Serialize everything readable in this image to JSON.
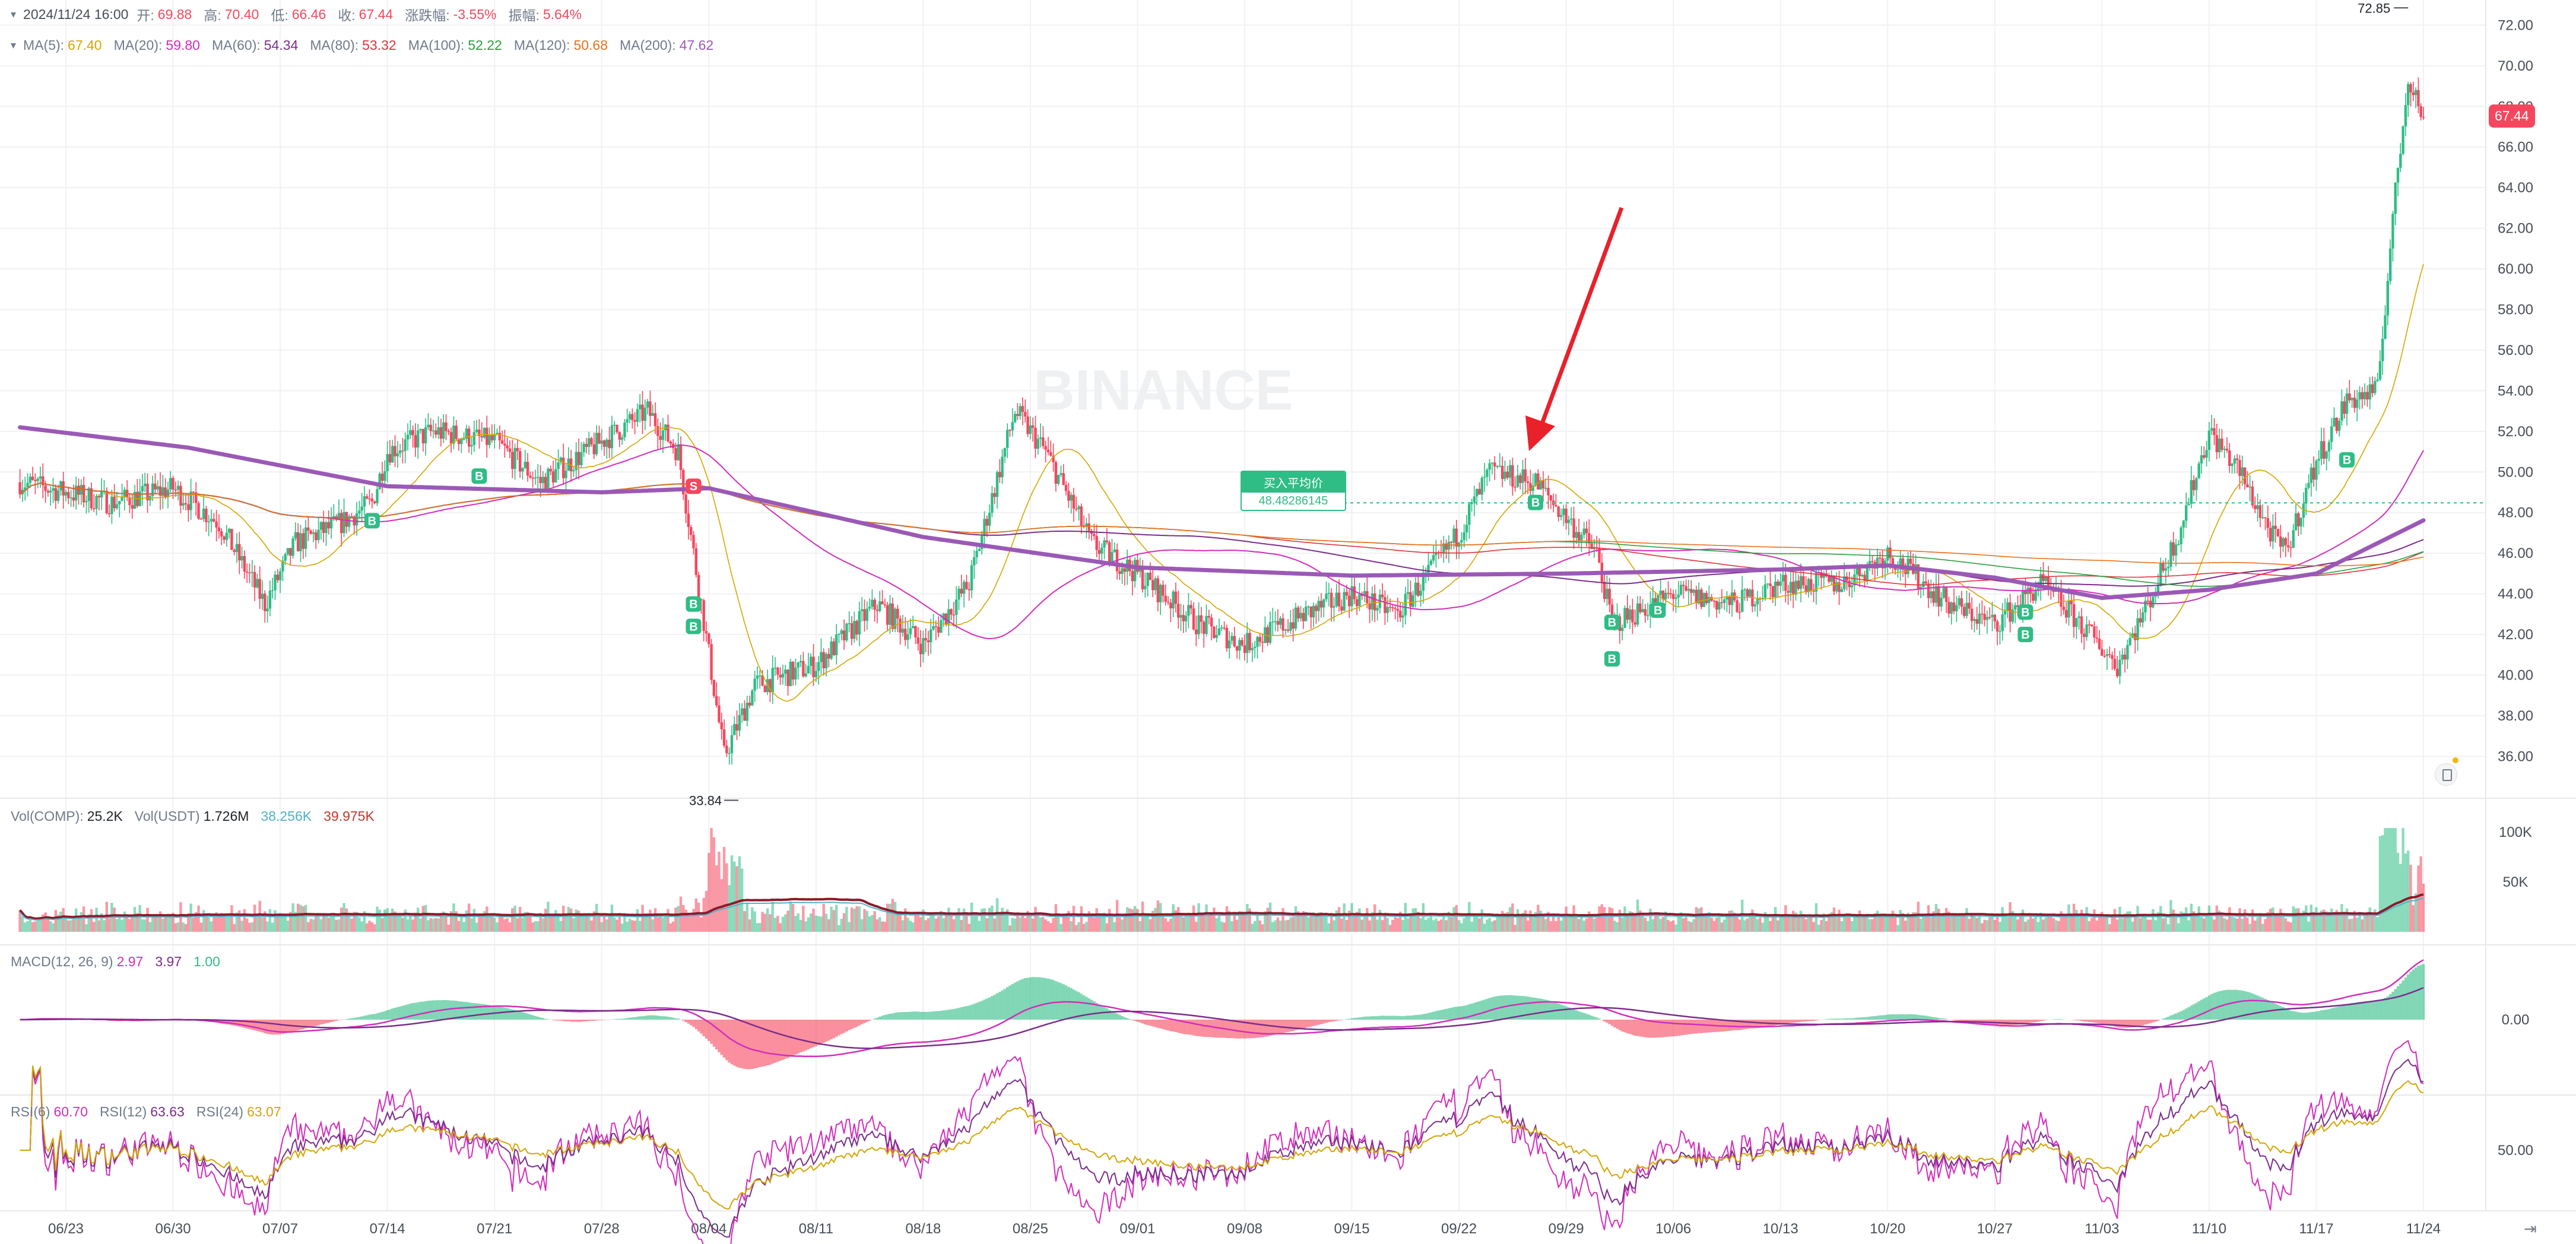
{
  "header": {
    "date": "2024/11/24 16:00",
    "fields": [
      {
        "k": "开:",
        "v": "69.88",
        "c": "#f6465d"
      },
      {
        "k": "高:",
        "v": "70.40",
        "c": "#f6465d"
      },
      {
        "k": "低:",
        "v": "66.46",
        "c": "#f6465d"
      },
      {
        "k": "收:",
        "v": "67.44",
        "c": "#f6465d"
      },
      {
        "k": "涨跌幅:",
        "v": "-3.55%",
        "c": "#f6465d"
      },
      {
        "k": "振幅:",
        "v": "5.64%",
        "c": "#f6465d"
      }
    ]
  },
  "ma_legend": [
    {
      "k": "MA(5):",
      "v": "67.40",
      "c": "#d6a500"
    },
    {
      "k": "MA(20):",
      "v": "59.80",
      "c": "#d32dbb"
    },
    {
      "k": "MA(60):",
      "v": "54.34",
      "c": "#7b2d8b"
    },
    {
      "k": "MA(80):",
      "v": "53.32",
      "c": "#e1323c"
    },
    {
      "k": "MA(100):",
      "v": "52.22",
      "c": "#2e9e3e"
    },
    {
      "k": "MA(120):",
      "v": "50.68",
      "c": "#e8711c"
    },
    {
      "k": "MA(200):",
      "v": "47.62",
      "c": "#9b59b6"
    }
  ],
  "vol_legend": [
    {
      "k": "Vol(COMP):",
      "v": "25.2K",
      "c": "#1e2329"
    },
    {
      "k": "Vol(USDT)",
      "v": "1.726M",
      "c": "#1e2329"
    },
    {
      "k": "",
      "v": "38.256K",
      "c": "#4fb1c9"
    },
    {
      "k": "",
      "v": "39.975K",
      "c": "#c0392b"
    }
  ],
  "macd_legend": [
    {
      "k": "MACD(12, 26, 9)",
      "v": "2.97",
      "c": "#d32dbb"
    },
    {
      "k": "",
      "v": "3.97",
      "c": "#7b2d8b"
    },
    {
      "k": "",
      "v": "1.00",
      "c": "#2ebd85"
    }
  ],
  "rsi_legend": [
    {
      "k": "RSI(6)",
      "v": "60.70",
      "c": "#d32dbb"
    },
    {
      "k": "RSI(12)",
      "v": "63.63",
      "c": "#7b2d8b"
    },
    {
      "k": "RSI(24)",
      "v": "63.07",
      "c": "#d6a500"
    }
  ],
  "current_price": "67.44",
  "buy_avg": {
    "label": "买入平均价",
    "value": "48.48286145",
    "price": 48.48
  },
  "watermark": "BINANCE",
  "colors": {
    "up": "#2ebd85",
    "down": "#f6465d",
    "grid": "#f0f1f3",
    "axis_text": "#474d57",
    "arrow": "#e8212b",
    "ma200": "#9b59b6"
  },
  "chart_data": {
    "type": "candlestick",
    "x_tick_labels": [
      "06/23",
      "06/30",
      "07/07",
      "07/14",
      "07/21",
      "07/28",
      "08/04",
      "08/11",
      "08/18",
      "08/25",
      "09/01",
      "09/08",
      "09/15",
      "09/22",
      "09/29",
      "10/06",
      "10/13",
      "10/20",
      "10/27",
      "11/03",
      "11/10",
      "11/17",
      "11/24"
    ],
    "x_range": [
      "2024-06-20",
      "2024-11-24"
    ],
    "y_ticks": [
      "72.00",
      "70.00",
      "68.00",
      "66.00",
      "64.00",
      "62.00",
      "60.00",
      "58.00",
      "56.00",
      "54.00",
      "52.00",
      "50.00",
      "48.00",
      "46.00",
      "44.00",
      "42.00",
      "40.00",
      "38.00",
      "36.00"
    ],
    "ylim": [
      34.2,
      72.8
    ],
    "high_label": "72.85",
    "low_label": "33.84",
    "anchors": [
      {
        "d": "06/20",
        "p": 49.5
      },
      {
        "d": "06/23",
        "p": 49.0
      },
      {
        "d": "06/26",
        "p": 48.5
      },
      {
        "d": "06/30",
        "p": 49.2
      },
      {
        "d": "07/03",
        "p": 47.5
      },
      {
        "d": "07/06",
        "p": 43.5
      },
      {
        "d": "07/08",
        "p": 46.5
      },
      {
        "d": "07/11",
        "p": 47.5
      },
      {
        "d": "07/13",
        "p": 48.5
      },
      {
        "d": "07/14",
        "p": 51.0
      },
      {
        "d": "07/17",
        "p": 52.0
      },
      {
        "d": "07/21",
        "p": 51.5
      },
      {
        "d": "07/24",
        "p": 49.5
      },
      {
        "d": "07/28",
        "p": 51.5
      },
      {
        "d": "07/31",
        "p": 53.0
      },
      {
        "d": "08/02",
        "p": 51.0
      },
      {
        "d": "08/03",
        "p": 46.0
      },
      {
        "d": "08/05",
        "p": 36.0
      },
      {
        "d": "08/07",
        "p": 39.5
      },
      {
        "d": "08/11",
        "p": 40.5
      },
      {
        "d": "08/15",
        "p": 43.5
      },
      {
        "d": "08/18",
        "p": 41.5
      },
      {
        "d": "08/21",
        "p": 44.5
      },
      {
        "d": "08/24",
        "p": 53.0
      },
      {
        "d": "08/26",
        "p": 51.0
      },
      {
        "d": "08/29",
        "p": 46.5
      },
      {
        "d": "09/01",
        "p": 45.0
      },
      {
        "d": "09/05",
        "p": 42.5
      },
      {
        "d": "09/08",
        "p": 41.5
      },
      {
        "d": "09/12",
        "p": 43.0
      },
      {
        "d": "09/15",
        "p": 44.0
      },
      {
        "d": "09/18",
        "p": 43.0
      },
      {
        "d": "09/22",
        "p": 47.0
      },
      {
        "d": "09/24",
        "p": 50.0
      },
      {
        "d": "09/27",
        "p": 49.5
      },
      {
        "d": "10/01",
        "p": 46.0
      },
      {
        "d": "10/02",
        "p": 42.5
      },
      {
        "d": "10/06",
        "p": 44.0
      },
      {
        "d": "10/10",
        "p": 43.5
      },
      {
        "d": "10/13",
        "p": 44.5
      },
      {
        "d": "10/17",
        "p": 44.5
      },
      {
        "d": "10/20",
        "p": 46.0
      },
      {
        "d": "10/24",
        "p": 43.5
      },
      {
        "d": "10/27",
        "p": 42.5
      },
      {
        "d": "10/30",
        "p": 44.5
      },
      {
        "d": "11/01",
        "p": 43.0
      },
      {
        "d": "11/04",
        "p": 40.5
      },
      {
        "d": "11/06",
        "p": 43.5
      },
      {
        "d": "11/08",
        "p": 47.0
      },
      {
        "d": "11/10",
        "p": 52.0
      },
      {
        "d": "11/12",
        "p": 50.0
      },
      {
        "d": "11/14",
        "p": 47.0
      },
      {
        "d": "11/15",
        "p": 46.0
      },
      {
        "d": "11/17",
        "p": 50.5
      },
      {
        "d": "11/19",
        "p": 53.5
      },
      {
        "d": "11/21",
        "p": 54.0
      },
      {
        "d": "11/22",
        "p": 62.5
      },
      {
        "d": "11/23",
        "p": 69.5
      },
      {
        "d": "11/24",
        "p": 67.44
      }
    ],
    "ma200_anchors": [
      {
        "d": "06/20",
        "p": 52.2
      },
      {
        "d": "07/01",
        "p": 51.2
      },
      {
        "d": "07/14",
        "p": 49.3
      },
      {
        "d": "07/28",
        "p": 49.0
      },
      {
        "d": "08/04",
        "p": 49.2
      },
      {
        "d": "08/18",
        "p": 46.8
      },
      {
        "d": "09/01",
        "p": 45.3
      },
      {
        "d": "09/15",
        "p": 44.9
      },
      {
        "d": "09/29",
        "p": 45.0
      },
      {
        "d": "10/13",
        "p": 45.2
      },
      {
        "d": "10/20",
        "p": 45.4
      },
      {
        "d": "10/27",
        "p": 44.8
      },
      {
        "d": "11/03",
        "p": 43.8
      },
      {
        "d": "11/10",
        "p": 44.2
      },
      {
        "d": "11/17",
        "p": 45.0
      },
      {
        "d": "11/24",
        "p": 47.62
      }
    ],
    "buy_markers": [
      {
        "d": "07/13",
        "p": 47.6
      },
      {
        "d": "07/20",
        "p": 49.8
      },
      {
        "d": "08/03",
        "p": 43.5
      },
      {
        "d": "08/03",
        "p": 42.4
      },
      {
        "d": "09/27",
        "p": 48.5
      },
      {
        "d": "10/02",
        "p": 42.6
      },
      {
        "d": "10/02",
        "p": 40.8
      },
      {
        "d": "10/05",
        "p": 43.2
      },
      {
        "d": "10/29",
        "p": 43.1
      },
      {
        "d": "10/29",
        "p": 42.0
      },
      {
        "d": "11/19",
        "p": 50.6
      }
    ],
    "sell_markers": [
      {
        "d": "08/03",
        "p": 49.3
      }
    ],
    "volume_ticks": [
      "100K",
      "50K"
    ],
    "macd_ticks": [
      "0.00"
    ],
    "rsi_ticks": [
      "50.00"
    ]
  }
}
